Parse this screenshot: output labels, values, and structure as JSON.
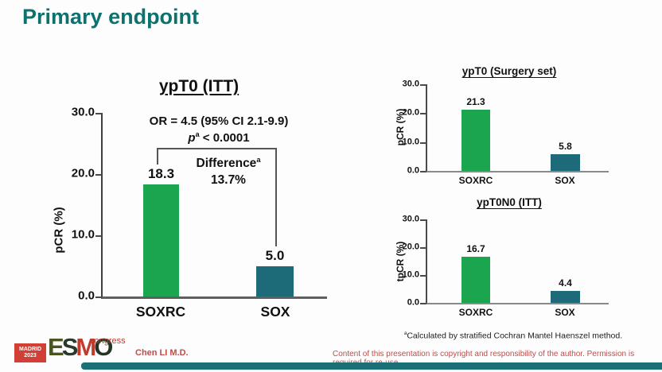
{
  "slide": {
    "title": "Primary endpoint",
    "footnote": {
      "sup": "a",
      "text": "Calculated by stratified Cochran Mantel Haenszel method."
    },
    "presenter": "Chen LI M.D.",
    "copyright": "Content of this presentation is copyright and responsibility of the author. Permission is required for re-use.",
    "logo": {
      "venue": "MADRID",
      "year": "2023",
      "org_letters": [
        "E",
        "S",
        "M",
        "O"
      ],
      "congress": "congress"
    }
  },
  "colors": {
    "title_teal": "#0d716e",
    "bar_green": "#1aa54e",
    "bar_teal": "#1d6a78",
    "footer_red": "#bf4c49",
    "logo_red": "#d23f34",
    "bottom_bar_teal": "#1b7077"
  },
  "chart_data": [
    {
      "type": "bar",
      "title": "ypT0 (ITT)",
      "ylabel": "pCR (%)",
      "categories": [
        "SOXRC",
        "SOX"
      ],
      "values": [
        18.3,
        5.0
      ],
      "value_labels": [
        "18.3",
        "5.0"
      ],
      "yticks": [
        "30.0",
        "20.0",
        "10.0",
        "0.0"
      ],
      "ylim": [
        0,
        30
      ],
      "grid": false,
      "legend": "none",
      "bar_colors": [
        "#1aa54e",
        "#1d6a78"
      ],
      "annotations": {
        "or": "OR = 4.5 (95% CI 2.1-9.9)",
        "p_label": "p",
        "p_sup": "a",
        "p_rest": "< 0.0001",
        "diff_label": "Difference",
        "diff_sup": "a",
        "diff_value": "13.7%"
      }
    },
    {
      "type": "bar",
      "title": "ypT0 (Surgery set)",
      "ylabel": "pCR (%)",
      "categories": [
        "SOXRC",
        "SOX"
      ],
      "values": [
        21.3,
        5.8
      ],
      "value_labels": [
        "21.3",
        "5.8"
      ],
      "yticks": [
        "30.0",
        "20.0",
        "10.0",
        "0.0"
      ],
      "ylim": [
        0,
        30
      ],
      "grid": false,
      "legend": "none",
      "bar_colors": [
        "#1aa54e",
        "#1d6a78"
      ]
    },
    {
      "type": "bar",
      "title": "ypT0N0 (ITT)",
      "ylabel": "tpCR (%)",
      "categories": [
        "SOXRC",
        "SOX"
      ],
      "values": [
        16.7,
        4.4
      ],
      "value_labels": [
        "16.7",
        "4.4"
      ],
      "yticks": [
        "30.0",
        "20.0",
        "10.0",
        "0.0"
      ],
      "ylim": [
        0,
        30
      ],
      "grid": false,
      "legend": "none",
      "bar_colors": [
        "#1aa54e",
        "#1d6a78"
      ]
    }
  ]
}
